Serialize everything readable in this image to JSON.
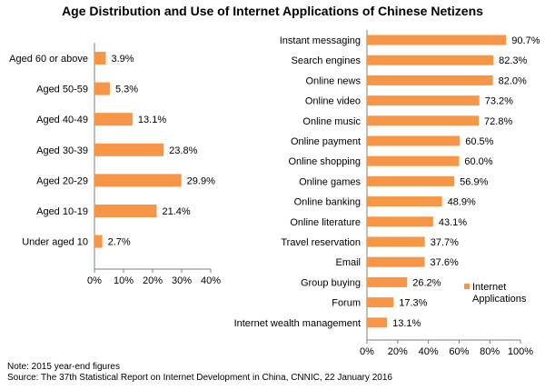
{
  "title": "Age Distribution and Use of Internet Applications of Chinese Netizens",
  "note": "Note: 2015 year-end figures",
  "source": "Source: The 37th Statistical Report on Internet Development in China, CNNIC, 22 January 2016",
  "chart_data": [
    {
      "type": "bar",
      "orientation": "horizontal",
      "categories": [
        "Aged 60 or above",
        "Aged 50-59",
        "Aged 40-49",
        "Aged 30-39",
        "Aged 20-29",
        "Aged 10-19",
        "Under aged 10"
      ],
      "values": [
        3.9,
        5.3,
        13.1,
        23.8,
        29.9,
        21.4,
        2.7
      ],
      "value_labels": [
        "3.9%",
        "5.3%",
        "13.1%",
        "23.8%",
        "29.9%",
        "21.4%",
        "2.7%"
      ],
      "xlim": [
        0,
        40
      ],
      "ticks": [
        0,
        10,
        20,
        30,
        40
      ],
      "tick_labels": [
        "0%",
        "10%",
        "20%",
        "30%",
        "40%"
      ],
      "color": "#F79646",
      "grid": false
    },
    {
      "type": "bar",
      "orientation": "horizontal",
      "categories": [
        "Instant messaging",
        "Search engines",
        "Online news",
        "Online video",
        "Online music",
        "Online payment",
        "Online shopping",
        "Online games",
        "Online banking",
        "Online literature",
        "Travel reservation",
        "Email",
        "Group buying",
        "Forum",
        "Internet wealth management"
      ],
      "values": [
        90.7,
        82.3,
        82.0,
        73.2,
        72.8,
        60.5,
        60.0,
        56.9,
        48.9,
        43.1,
        37.7,
        37.6,
        26.2,
        17.3,
        13.1
      ],
      "value_labels": [
        "90.7%",
        "82.3%",
        "82.0%",
        "73.2%",
        "72.8%",
        "60.5%",
        "60.0%",
        "56.9%",
        "48.9%",
        "43.1%",
        "37.7%",
        "37.6%",
        "26.2%",
        "17.3%",
        "13.1%"
      ],
      "xlim": [
        0,
        100
      ],
      "ticks": [
        0,
        20,
        40,
        60,
        80,
        100
      ],
      "tick_labels": [
        "0%",
        "20%",
        "40%",
        "60%",
        "80%",
        "100%"
      ],
      "legend": [
        "Internet",
        "Applications"
      ],
      "legend_position": "right",
      "color": "#F79646",
      "grid": false
    }
  ]
}
